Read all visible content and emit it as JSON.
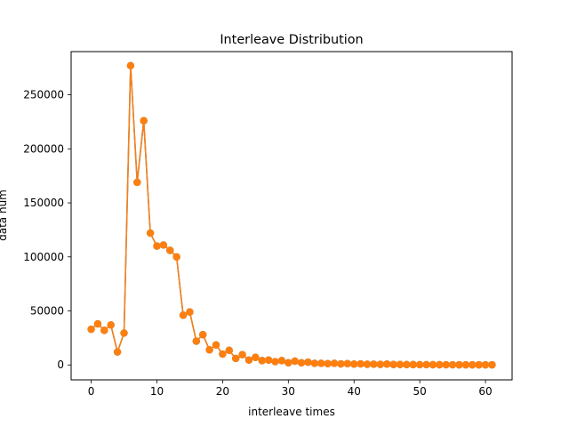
{
  "chart_data": {
    "type": "line",
    "title": "Interleave Distribution",
    "xlabel": "interleave times",
    "ylabel": "data num",
    "xlim": [
      -3.05,
      64.05
    ],
    "ylim": [
      -13800,
      290000
    ],
    "xticks": [
      0,
      10,
      20,
      30,
      40,
      50,
      60
    ],
    "yticks": [
      0,
      50000,
      100000,
      150000,
      200000,
      250000
    ],
    "grid": false,
    "colors": {
      "line_back": "#1f77b4",
      "line_front": "#ff7f0e"
    },
    "x": [
      0,
      1,
      2,
      3,
      4,
      5,
      6,
      7,
      8,
      9,
      10,
      11,
      12,
      13,
      14,
      15,
      16,
      17,
      18,
      19,
      20,
      21,
      22,
      23,
      24,
      25,
      26,
      27,
      28,
      29,
      30,
      31,
      32,
      33,
      34,
      35,
      36,
      37,
      38,
      39,
      40,
      41,
      42,
      43,
      44,
      45,
      46,
      47,
      48,
      49,
      50,
      51,
      52,
      53,
      54,
      55,
      56,
      57,
      58,
      59,
      60,
      61
    ],
    "series": [
      {
        "values": [
          33000,
          38000,
          32000,
          37000,
          12000,
          29500,
          277000,
          169000,
          226000,
          122000,
          110000,
          111000,
          106000,
          100000,
          46000,
          49000,
          22000,
          28000,
          14000,
          18500,
          10000,
          13500,
          6000,
          9500,
          4500,
          7000,
          4000,
          4500,
          3000,
          4000,
          2000,
          3500,
          2000,
          2500,
          1500,
          1500,
          1200,
          1500,
          1000,
          1200,
          800,
          1000,
          600,
          700,
          500,
          800,
          400,
          400,
          300,
          300,
          250,
          250,
          200,
          200,
          150,
          150,
          100,
          100,
          100,
          100,
          80,
          80
        ]
      },
      {
        "values": [
          33000,
          38000,
          32000,
          37000,
          12000,
          29500,
          277000,
          169000,
          226000,
          122000,
          110000,
          111000,
          106000,
          100000,
          46000,
          49000,
          22000,
          28000,
          14000,
          18500,
          10000,
          13500,
          6000,
          9500,
          4500,
          7000,
          4000,
          4500,
          3000,
          4000,
          2000,
          3500,
          2000,
          2500,
          1500,
          1500,
          1200,
          1500,
          1000,
          1200,
          800,
          1000,
          600,
          700,
          500,
          800,
          400,
          400,
          300,
          300,
          250,
          250,
          200,
          200,
          150,
          150,
          100,
          100,
          100,
          100,
          80,
          80
        ]
      }
    ]
  }
}
